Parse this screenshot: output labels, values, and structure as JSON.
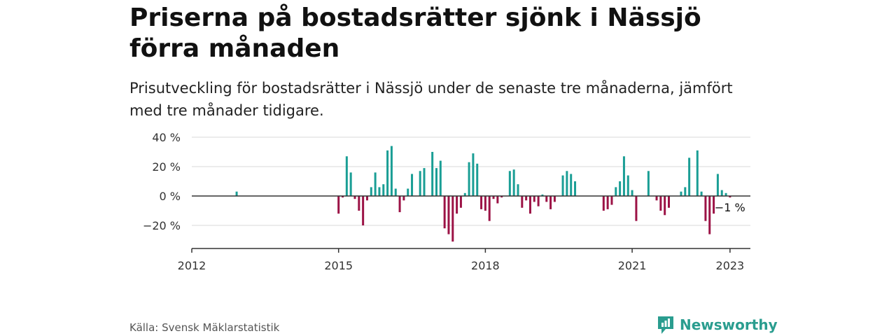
{
  "header": {
    "title": "Priserna på bostadsrätter sjönk i Nässjö förra månaden",
    "subtitle": "Prisutveckling för bostadsrätter i Nässjö under de senaste tre månaderna, jämfört med tre månader tidigare."
  },
  "footer": {
    "source": "Källa: Svensk Mäklarstatistik",
    "brand": "Newsworthy"
  },
  "colors": {
    "positive": "#1a9e95",
    "negative": "#9c1346",
    "grid": "#d9d9d9",
    "zero_line": "#333333",
    "brand": "#2a9d8f"
  },
  "chart_data": {
    "type": "bar",
    "title": "",
    "xlabel": "",
    "ylabel": "",
    "ylim": [
      -36,
      40
    ],
    "x_range": [
      "2012-01",
      "2023-06"
    ],
    "y_ticks": [
      {
        "value": 40,
        "label": "40 %"
      },
      {
        "value": 20,
        "label": "20 %"
      },
      {
        "value": 0,
        "label": "0 %"
      },
      {
        "value": -20,
        "label": "−20 %"
      }
    ],
    "x_ticks": [
      {
        "value": "2012-01",
        "label": "2012"
      },
      {
        "value": "2015-01",
        "label": "2015"
      },
      {
        "value": "2018-01",
        "label": "2018"
      },
      {
        "value": "2021-01",
        "label": "2021"
      },
      {
        "value": "2023-01",
        "label": "2023"
      }
    ],
    "grid": true,
    "legend": "none",
    "annotation": {
      "date": "2023-01",
      "value": -1,
      "label": "−1 %"
    },
    "series": [
      {
        "points": [
          {
            "date": "2012-12",
            "value": 3
          },
          {
            "date": "2015-01",
            "value": -12
          },
          {
            "date": "2015-02",
            "value": -1
          },
          {
            "date": "2015-03",
            "value": 27
          },
          {
            "date": "2015-04",
            "value": 16
          },
          {
            "date": "2015-05",
            "value": -2
          },
          {
            "date": "2015-06",
            "value": -10
          },
          {
            "date": "2015-07",
            "value": -20
          },
          {
            "date": "2015-08",
            "value": -3
          },
          {
            "date": "2015-09",
            "value": 6
          },
          {
            "date": "2015-10",
            "value": 16
          },
          {
            "date": "2015-11",
            "value": 6
          },
          {
            "date": "2015-12",
            "value": 8
          },
          {
            "date": "2016-01",
            "value": 31
          },
          {
            "date": "2016-02",
            "value": 34
          },
          {
            "date": "2016-03",
            "value": 5
          },
          {
            "date": "2016-04",
            "value": -11
          },
          {
            "date": "2016-05",
            "value": -3
          },
          {
            "date": "2016-06",
            "value": 5
          },
          {
            "date": "2016-07",
            "value": 15
          },
          {
            "date": "2016-09",
            "value": 17
          },
          {
            "date": "2016-10",
            "value": 19
          },
          {
            "date": "2016-12",
            "value": 30
          },
          {
            "date": "2017-01",
            "value": 19
          },
          {
            "date": "2017-02",
            "value": 24
          },
          {
            "date": "2017-03",
            "value": -22
          },
          {
            "date": "2017-04",
            "value": -26
          },
          {
            "date": "2017-05",
            "value": -31
          },
          {
            "date": "2017-06",
            "value": -12
          },
          {
            "date": "2017-07",
            "value": -8
          },
          {
            "date": "2017-08",
            "value": 2
          },
          {
            "date": "2017-09",
            "value": 23
          },
          {
            "date": "2017-10",
            "value": 29
          },
          {
            "date": "2017-11",
            "value": 22
          },
          {
            "date": "2017-12",
            "value": -9
          },
          {
            "date": "2018-01",
            "value": -10
          },
          {
            "date": "2018-02",
            "value": -17
          },
          {
            "date": "2018-03",
            "value": -2
          },
          {
            "date": "2018-04",
            "value": -5
          },
          {
            "date": "2018-05",
            "value": -1
          },
          {
            "date": "2018-07",
            "value": 17
          },
          {
            "date": "2018-08",
            "value": 18
          },
          {
            "date": "2018-09",
            "value": 8
          },
          {
            "date": "2018-10",
            "value": -8
          },
          {
            "date": "2018-11",
            "value": -3
          },
          {
            "date": "2018-12",
            "value": -12
          },
          {
            "date": "2019-01",
            "value": -4
          },
          {
            "date": "2019-02",
            "value": -7
          },
          {
            "date": "2019-03",
            "value": 1
          },
          {
            "date": "2019-04",
            "value": -4
          },
          {
            "date": "2019-05",
            "value": -9
          },
          {
            "date": "2019-06",
            "value": -4
          },
          {
            "date": "2019-08",
            "value": 14
          },
          {
            "date": "2019-09",
            "value": 17
          },
          {
            "date": "2019-10",
            "value": 15
          },
          {
            "date": "2019-11",
            "value": 10
          },
          {
            "date": "2020-06",
            "value": -10
          },
          {
            "date": "2020-07",
            "value": -9
          },
          {
            "date": "2020-08",
            "value": -6
          },
          {
            "date": "2020-09",
            "value": 6
          },
          {
            "date": "2020-10",
            "value": 10
          },
          {
            "date": "2020-11",
            "value": 27
          },
          {
            "date": "2020-12",
            "value": 14
          },
          {
            "date": "2021-01",
            "value": 4
          },
          {
            "date": "2021-02",
            "value": -17
          },
          {
            "date": "2021-05",
            "value": 17
          },
          {
            "date": "2021-07",
            "value": -3
          },
          {
            "date": "2021-08",
            "value": -10
          },
          {
            "date": "2021-09",
            "value": -13
          },
          {
            "date": "2021-10",
            "value": -8
          },
          {
            "date": "2022-01",
            "value": 3
          },
          {
            "date": "2022-02",
            "value": 6
          },
          {
            "date": "2022-03",
            "value": 26
          },
          {
            "date": "2022-05",
            "value": 31
          },
          {
            "date": "2022-06",
            "value": 3
          },
          {
            "date": "2022-07",
            "value": -17
          },
          {
            "date": "2022-08",
            "value": -26
          },
          {
            "date": "2022-09",
            "value": -12
          },
          {
            "date": "2022-10",
            "value": 15
          },
          {
            "date": "2022-11",
            "value": 4
          },
          {
            "date": "2022-12",
            "value": 2
          },
          {
            "date": "2023-01",
            "value": -1
          }
        ]
      }
    ]
  }
}
